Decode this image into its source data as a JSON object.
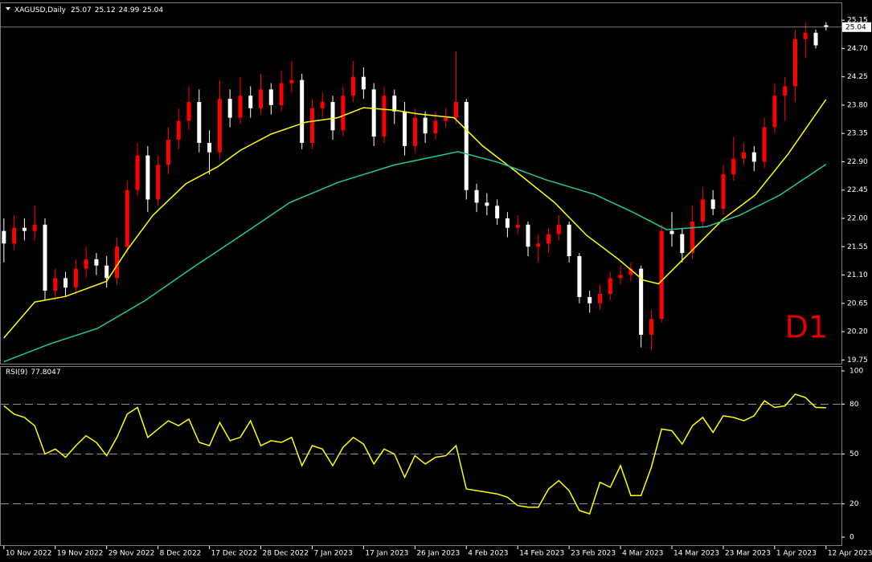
{
  "chart_data": [
    {
      "type": "candlestick",
      "symbol": "XAGUSD,Daily",
      "watermark": "D1",
      "up_color": "#ff0000",
      "down_color": "#ffffff",
      "open": [
        21.8,
        21.6,
        21.85,
        21.8,
        21.9,
        20.85,
        21.05,
        20.9,
        21.2,
        21.35,
        21.25,
        21.05,
        21.55,
        22.45,
        23.0,
        22.3,
        22.85,
        23.25,
        23.55,
        23.85,
        23.2,
        23.05,
        23.9,
        23.6,
        23.95,
        23.75,
        24.05,
        23.8,
        24.15,
        24.2,
        23.2,
        23.75,
        23.85,
        23.4,
        23.95,
        24.25,
        24.05,
        23.3,
        23.95,
        23.7,
        23.15,
        23.6,
        23.35,
        23.55,
        23.6,
        23.85,
        22.45,
        22.25,
        22.2,
        22.0,
        21.85,
        21.9,
        21.55,
        21.6,
        21.75,
        21.9,
        21.4,
        20.75,
        20.65,
        20.8,
        21.05,
        21.1,
        21.2,
        20.15,
        20.4,
        21.8,
        21.75,
        21.45,
        21.95,
        22.3,
        22.15,
        22.7,
        22.95,
        23.05,
        22.9,
        23.45,
        23.95,
        24.1,
        24.85,
        24.95,
        25.07
      ],
      "high": [
        22.0,
        22.05,
        22.0,
        22.2,
        22.0,
        21.2,
        21.15,
        21.35,
        21.55,
        21.45,
        21.4,
        21.7,
        22.6,
        23.2,
        23.15,
        23.0,
        23.45,
        23.75,
        24.1,
        24.05,
        23.4,
        24.2,
        24.05,
        24.25,
        24.1,
        24.3,
        24.15,
        24.35,
        24.5,
        24.3,
        23.9,
        24.0,
        23.95,
        24.1,
        24.5,
        24.4,
        24.15,
        24.1,
        24.05,
        23.85,
        23.75,
        23.7,
        23.7,
        23.75,
        24.65,
        23.9,
        22.55,
        22.4,
        22.3,
        22.1,
        22.05,
        21.95,
        21.75,
        21.85,
        22.05,
        21.95,
        21.45,
        20.85,
        20.95,
        21.15,
        21.25,
        21.3,
        21.25,
        20.55,
        21.9,
        22.1,
        21.85,
        22.2,
        22.5,
        22.45,
        22.85,
        23.3,
        23.2,
        23.15,
        23.6,
        24.15,
        24.25,
        25.0,
        25.12,
        25.0,
        25.12
      ],
      "low": [
        21.3,
        21.5,
        21.65,
        21.65,
        20.7,
        20.7,
        20.75,
        20.8,
        21.05,
        21.1,
        20.9,
        20.95,
        21.45,
        22.35,
        22.1,
        22.2,
        22.7,
        23.1,
        23.4,
        23.05,
        22.7,
        22.95,
        23.45,
        23.5,
        23.6,
        23.65,
        23.65,
        23.7,
        24.0,
        23.1,
        23.1,
        23.6,
        23.25,
        23.3,
        23.85,
        23.9,
        23.15,
        23.2,
        23.5,
        23.0,
        23.05,
        23.2,
        23.25,
        23.45,
        23.5,
        22.3,
        22.1,
        22.05,
        21.9,
        21.7,
        21.75,
        21.4,
        21.3,
        21.45,
        21.65,
        21.3,
        20.65,
        20.5,
        20.55,
        20.7,
        20.95,
        21.0,
        19.95,
        19.9,
        20.35,
        21.55,
        21.3,
        21.35,
        21.85,
        22.05,
        22.05,
        22.6,
        22.85,
        22.75,
        22.8,
        23.35,
        23.55,
        23.85,
        24.55,
        24.7,
        24.99
      ],
      "close": [
        21.6,
        21.85,
        21.8,
        21.9,
        20.85,
        21.05,
        20.9,
        21.2,
        21.35,
        21.25,
        21.05,
        21.55,
        22.45,
        23.0,
        22.3,
        22.85,
        23.25,
        23.55,
        23.85,
        23.2,
        23.05,
        23.9,
        23.6,
        23.95,
        23.75,
        24.05,
        23.8,
        24.15,
        24.2,
        23.2,
        23.75,
        23.85,
        23.4,
        23.95,
        24.25,
        24.05,
        23.3,
        23.95,
        23.7,
        23.15,
        23.6,
        23.35,
        23.55,
        23.6,
        23.85,
        22.45,
        22.25,
        22.2,
        22.0,
        21.85,
        21.9,
        21.55,
        21.6,
        21.75,
        21.9,
        21.4,
        20.75,
        20.65,
        20.8,
        21.05,
        21.1,
        21.2,
        20.15,
        20.4,
        21.8,
        21.75,
        21.45,
        21.95,
        22.3,
        22.15,
        22.7,
        22.95,
        23.05,
        22.9,
        23.45,
        23.95,
        24.1,
        24.85,
        24.95,
        24.75,
        25.04
      ],
      "series": [
        {
          "color": "#ffff00",
          "x": [
            0,
            3,
            6,
            10,
            12,
            14.5,
            17.7,
            20.8,
            23,
            26,
            29.4,
            32.5,
            35,
            38,
            40.3,
            43.8,
            46.6,
            49.7,
            53.6,
            56.7,
            59.8,
            62.2,
            63.7,
            66.9,
            70,
            73.1,
            76.3,
            80
          ],
          "values": [
            20.1,
            20.67,
            20.76,
            21.0,
            21.5,
            22.05,
            22.55,
            22.82,
            23.08,
            23.34,
            23.53,
            23.6,
            23.76,
            23.72,
            23.66,
            23.6,
            23.15,
            22.76,
            22.25,
            21.73,
            21.35,
            21.02,
            20.96,
            21.48,
            21.99,
            22.37,
            23.02,
            23.89
          ]
        },
        {
          "color": "#20c997",
          "x": [
            0,
            4.4,
            9.1,
            13.8,
            18.4,
            23.1,
            27.8,
            32.5,
            38,
            44.2,
            48.1,
            52.8,
            57.5,
            61.3,
            64.5,
            68.4,
            71.6,
            75.5,
            80
          ],
          "values": [
            19.72,
            20.0,
            20.25,
            20.7,
            21.22,
            21.73,
            22.25,
            22.57,
            22.85,
            23.06,
            22.89,
            22.61,
            22.38,
            22.09,
            21.82,
            21.87,
            22.05,
            22.37,
            22.86
          ]
        }
      ],
      "ylim": [
        19.69,
        25.42
      ],
      "yticks": [
        19.75,
        {
          "value": 20.2,
          "label": "20.20"
        },
        20.65,
        {
          "value": 21.1,
          "label": "21.10"
        },
        21.55,
        {
          "value": 22,
          "label": "22.00"
        },
        22.45,
        {
          "value": 22.9,
          "label": "22.90"
        },
        23.35,
        {
          "value": 23.8,
          "label": "23.80"
        },
        24.25,
        {
          "value": 24.7,
          "label": "24.70"
        },
        25.15
      ],
      "xlim": [
        -0.3,
        81.5
      ],
      "xticks": [
        {
          "value": 0,
          "label": "10 Nov 2022"
        },
        {
          "value": 5,
          "label": "19 Nov 2022"
        },
        {
          "value": 10,
          "label": "29 Nov 2022"
        },
        {
          "value": 15,
          "label": "8 Dec 2022"
        },
        {
          "value": 20,
          "label": "17 Dec 2022"
        },
        {
          "value": 25,
          "label": "28 Dec 2022"
        },
        {
          "value": 30,
          "label": "7 Jan 2023"
        },
        {
          "value": 35,
          "label": "17 Jan 2023"
        },
        {
          "value": 40,
          "label": "26 Jan 2023"
        },
        {
          "value": 45,
          "label": "4 Feb 2023"
        },
        {
          "value": 50,
          "label": "14 Feb 2023"
        },
        {
          "value": 55,
          "label": "23 Feb 2023"
        },
        {
          "value": 60,
          "label": "4 Mar 2023"
        },
        {
          "value": 65,
          "label": "14 Mar 2023"
        },
        {
          "value": 70,
          "label": "23 Mar 2023"
        },
        {
          "value": 75,
          "label": "1 Apr 2023"
        },
        {
          "value": 80,
          "label": "12 Apr 2023"
        }
      ]
    },
    {
      "type": "line",
      "title": "RSI(9)",
      "color": "#ffff00",
      "values": [
        79,
        74,
        72,
        67,
        50,
        53,
        48,
        55,
        61,
        57,
        49,
        60,
        74,
        78,
        60,
        65,
        70,
        67,
        71,
        57,
        55,
        69,
        58,
        60,
        70,
        55,
        58,
        57,
        60,
        43,
        55,
        53,
        43,
        54,
        60,
        56,
        44,
        53,
        50,
        36,
        49,
        44,
        48,
        49,
        55,
        29,
        28,
        27,
        26,
        24,
        19,
        18,
        18,
        29,
        34,
        28,
        16,
        14,
        33,
        30,
        43,
        25,
        25,
        42,
        65,
        64,
        56,
        67,
        72,
        63,
        73,
        72,
        70,
        73,
        82,
        78,
        79,
        86,
        84,
        78,
        77.8047
      ],
      "ylim": [
        -5.3,
        102.4
      ],
      "yticks": [
        0,
        20,
        50,
        80,
        100
      ],
      "levels": [
        20,
        50,
        80
      ]
    }
  ]
}
